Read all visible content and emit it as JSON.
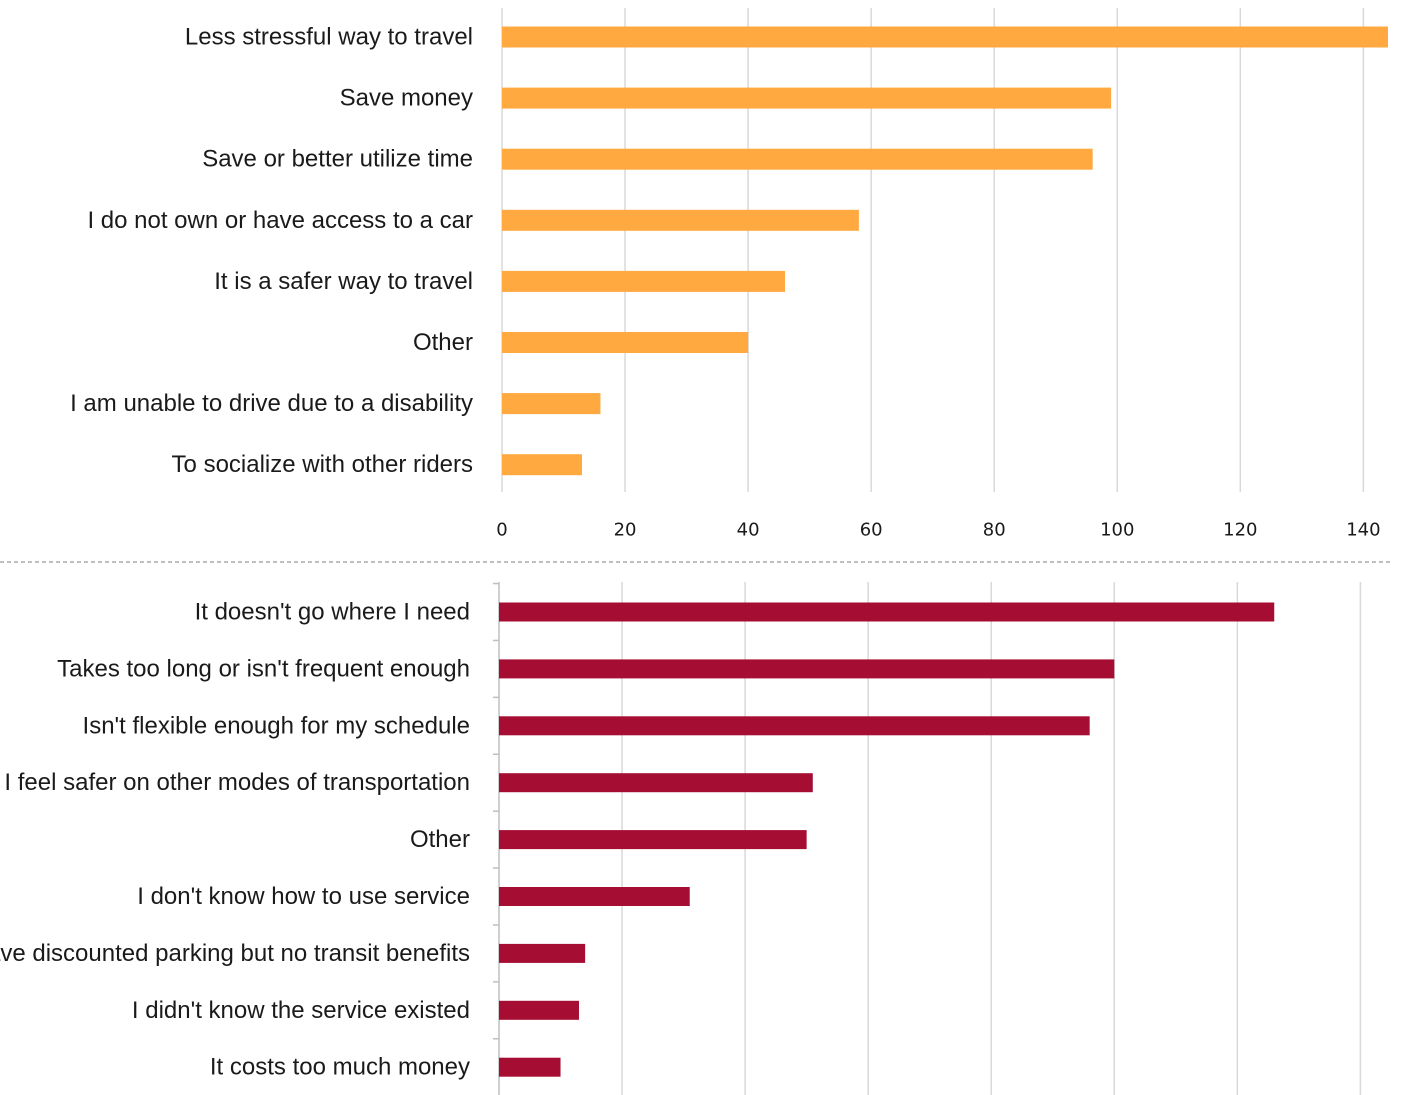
{
  "chart_data": [
    {
      "type": "bar",
      "orientation": "horizontal",
      "categories": [
        "Less stressful way to travel",
        "Save money",
        "Save or better utilize time",
        "I do not own or have access to a car",
        "It is a safer way to travel",
        "Other",
        "I am unable to drive due to a disability",
        "To socialize with other riders"
      ],
      "values": [
        144,
        99,
        96,
        58,
        46,
        40,
        16,
        13
      ],
      "xlim": [
        0,
        144
      ],
      "ticks": [
        "0",
        "20",
        "40",
        "60",
        "80",
        "100",
        "120",
        "140"
      ],
      "color": "#ffa940",
      "grid": true,
      "title": "",
      "xlabel": "",
      "ylabel": ""
    },
    {
      "type": "bar",
      "orientation": "horizontal",
      "categories": [
        "It doesn't go where I need",
        "Takes too long or isn't frequent enough",
        "Isn't flexible enough for my schedule",
        "I feel safer on other modes of transportation",
        "Other",
        "I don't know how to use service",
        "I have discounted parking but no transit benefits",
        "I didn't know the service existed",
        "It costs too much money"
      ],
      "values": [
        126,
        100,
        96,
        51,
        50,
        31,
        14,
        13,
        10
      ],
      "xlim": [
        0,
        144
      ],
      "ticks": [],
      "color": "#a50d32",
      "grid": true,
      "title": "",
      "xlabel": "",
      "ylabel": ""
    }
  ]
}
